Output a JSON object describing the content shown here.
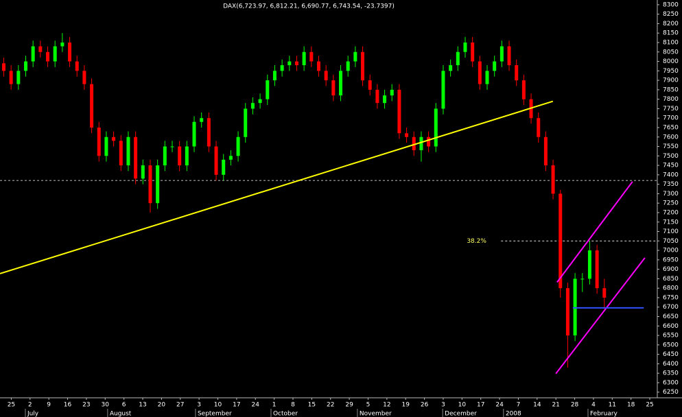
{
  "chart_data": {
    "type": "candlestick",
    "title": "DAX(6,723.97, 6,812.21, 6,690.77, 6,743.54, -23.7397)",
    "up_color": "#00ff00",
    "down_color": "#ff0000",
    "x": [
      1,
      2.95,
      4.9,
      6.85,
      8.8,
      10.75,
      12.7,
      14.65,
      16.6,
      18.55,
      20.5,
      22.45,
      24.4,
      26.35,
      28.3,
      30.25,
      32.2,
      34.15,
      36.1,
      38.05,
      40,
      41.95,
      43.9,
      45.85,
      47.8,
      49.75,
      51.7,
      53.65,
      55.6,
      57.55,
      59.5,
      61.45,
      63.4,
      65.35,
      67.3,
      69.25,
      71.2,
      73.15,
      75.1,
      77.05,
      79,
      80.95,
      82.9,
      84.85,
      86.8,
      88.75,
      90.7,
      92.65,
      94.6,
      96.55,
      98.5,
      100.45,
      102.4,
      104.35,
      106.3,
      108.25,
      110.2,
      112.15,
      114.1,
      116.05,
      118,
      119.95,
      121.9,
      123.85,
      125.8,
      127.75,
      129.7,
      131.65,
      133.6,
      135.55,
      137.5,
      139.45,
      141.4,
      143.35,
      145.3,
      147.25,
      149.2,
      151.15,
      153.1,
      155.05,
      157,
      158.95,
      160.9
    ],
    "open": [
      7990,
      7950,
      7880,
      7950,
      8000,
      8080,
      8050,
      8000,
      8080,
      8100,
      8000,
      7950,
      7880,
      7650,
      7500,
      7600,
      7580,
      7450,
      7600,
      7380,
      7450,
      7250,
      7450,
      7550,
      7550,
      7450,
      7550,
      7680,
      7700,
      7550,
      7400,
      7480,
      7500,
      7600,
      7750,
      7780,
      7800,
      7900,
      7950,
      7980,
      8000,
      7980,
      8050,
      8000,
      7950,
      7900,
      7820,
      7950,
      8000,
      8050,
      7900,
      7850,
      7780,
      7820,
      7850,
      7620,
      7600,
      7530,
      7600,
      7550,
      7750,
      7950,
      7980,
      8050,
      8100,
      8000,
      7880,
      7950,
      8000,
      8080,
      7980,
      7900,
      7800,
      7700,
      7600,
      7450,
      7300,
      6800,
      6550,
      6850,
      6850,
      7000,
      6800
    ],
    "high": [
      8020,
      7980,
      7980,
      8030,
      8110,
      8110,
      8080,
      8110,
      8150,
      8130,
      8030,
      7980,
      7910,
      7680,
      7630,
      7630,
      7610,
      7630,
      7630,
      7480,
      7480,
      7480,
      7580,
      7580,
      7580,
      7580,
      7710,
      7730,
      7730,
      7580,
      7510,
      7530,
      7630,
      7780,
      7810,
      7830,
      7930,
      7980,
      8010,
      8030,
      8030,
      8080,
      8080,
      8030,
      7980,
      7930,
      7980,
      8030,
      8080,
      8080,
      7930,
      7880,
      7850,
      7880,
      7880,
      7650,
      7630,
      7630,
      7630,
      7780,
      7980,
      8010,
      8080,
      8130,
      8130,
      8030,
      7980,
      8030,
      8110,
      8110,
      8010,
      7930,
      7830,
      7730,
      7630,
      7480,
      7320,
      6830,
      6880,
      6880,
      7050,
      7030,
      6850
    ],
    "low": [
      7920,
      7850,
      7850,
      7920,
      7970,
      8020,
      7970,
      7970,
      8050,
      7970,
      7920,
      7850,
      7620,
      7470,
      7470,
      7550,
      7420,
      7420,
      7350,
      7350,
      7200,
      7220,
      7420,
      7520,
      7420,
      7420,
      7520,
      7650,
      7520,
      7370,
      7370,
      7450,
      7470,
      7570,
      7720,
      7750,
      7770,
      7870,
      7920,
      7950,
      7950,
      7950,
      7970,
      7920,
      7870,
      7790,
      7790,
      7920,
      7970,
      7870,
      7820,
      7750,
      7750,
      7790,
      7590,
      7570,
      7500,
      7470,
      7520,
      7520,
      7720,
      7920,
      7950,
      8020,
      7970,
      7850,
      7850,
      7920,
      7970,
      7950,
      7870,
      7770,
      7670,
      7570,
      7420,
      7270,
      6750,
      6380,
      6520,
      6780,
      6820,
      6770,
      6690
    ],
    "close": [
      7950,
      7880,
      7950,
      8000,
      8080,
      8050,
      8000,
      8080,
      8100,
      8000,
      7950,
      7880,
      7650,
      7500,
      7600,
      7580,
      7450,
      7600,
      7380,
      7450,
      7250,
      7450,
      7550,
      7550,
      7450,
      7550,
      7680,
      7700,
      7550,
      7400,
      7480,
      7500,
      7600,
      7750,
      7780,
      7800,
      7900,
      7950,
      7980,
      8000,
      7980,
      8050,
      8000,
      7950,
      7900,
      7820,
      7950,
      8000,
      8050,
      7900,
      7850,
      7780,
      7820,
      7850,
      7620,
      7600,
      7530,
      7600,
      7550,
      7750,
      7950,
      7980,
      8050,
      8100,
      8000,
      7880,
      7950,
      8000,
      8080,
      7980,
      7900,
      7800,
      7700,
      7600,
      7450,
      7300,
      6800,
      6550,
      6850,
      6850,
      7000,
      6800,
      6750
    ],
    "xlim": [
      0,
      175
    ],
    "ylim": [
      6220,
      8325
    ],
    "yticks": [
      6250,
      6300,
      6350,
      6400,
      6450,
      6500,
      6550,
      6600,
      6650,
      6700,
      6750,
      6800,
      6850,
      6900,
      6950,
      7000,
      7050,
      7100,
      7150,
      7200,
      7250,
      7300,
      7350,
      7400,
      7450,
      7500,
      7550,
      7600,
      7650,
      7700,
      7750,
      7800,
      7850,
      7900,
      7950,
      8000,
      8050,
      8100,
      8150,
      8200,
      8250,
      8300
    ],
    "xticks": [
      {
        "value": 3,
        "label": "25"
      },
      {
        "value": 8,
        "label": "2"
      },
      {
        "value": 13,
        "label": "9"
      },
      {
        "value": 18,
        "label": "16"
      },
      {
        "value": 23,
        "label": "23"
      },
      {
        "value": 28,
        "label": "30"
      },
      {
        "value": 33,
        "label": "6"
      },
      {
        "value": 38,
        "label": "13"
      },
      {
        "value": 43,
        "label": "20"
      },
      {
        "value": 48,
        "label": "27"
      },
      {
        "value": 53,
        "label": "3"
      },
      {
        "value": 58,
        "label": "10"
      },
      {
        "value": 63,
        "label": "17"
      },
      {
        "value": 68,
        "label": "24"
      },
      {
        "value": 73,
        "label": "1"
      },
      {
        "value": 78,
        "label": "8"
      },
      {
        "value": 83,
        "label": "15"
      },
      {
        "value": 88,
        "label": "22"
      },
      {
        "value": 93,
        "label": "29"
      },
      {
        "value": 98,
        "label": "5"
      },
      {
        "value": 103,
        "label": "12"
      },
      {
        "value": 108,
        "label": "19"
      },
      {
        "value": 113,
        "label": "26"
      },
      {
        "value": 118,
        "label": "3"
      },
      {
        "value": 123,
        "label": "10"
      },
      {
        "value": 128,
        "label": "17"
      },
      {
        "value": 133,
        "label": "24"
      },
      {
        "value": 138,
        "label": "7"
      },
      {
        "value": 143,
        "label": "14"
      },
      {
        "value": 148,
        "label": "21"
      },
      {
        "value": 153,
        "label": "28"
      },
      {
        "value": 158,
        "label": "4"
      },
      {
        "value": 163,
        "label": "11"
      },
      {
        "value": 168,
        "label": "18"
      },
      {
        "value": 173,
        "label": "25"
      }
    ],
    "month_labels": [
      {
        "value": 7.3,
        "label": "July"
      },
      {
        "value": 29.2,
        "label": "August"
      },
      {
        "value": 52.6,
        "label": "September"
      },
      {
        "value": 72.7,
        "label": "October"
      },
      {
        "value": 95.7,
        "label": "November"
      },
      {
        "value": 118.4,
        "label": "December"
      },
      {
        "value": 134.6,
        "label": "2008"
      },
      {
        "value": 157.1,
        "label": "February"
      }
    ],
    "trendlines": [
      {
        "color": "#ffff00",
        "x": [
          0,
          147.2
        ],
        "y": [
          6877,
          7789
        ]
      },
      {
        "color": "#ff00ff",
        "x": [
          148,
          171.7
        ],
        "y": [
          6348,
          6961
        ]
      },
      {
        "color": "#ff00ff",
        "x": [
          148.3,
          168.4
        ],
        "y": [
          6831,
          7364
        ]
      },
      {
        "color": "#3050ff",
        "x": [
          152.5,
          171.4
        ],
        "y": [
          6696,
          6696
        ]
      }
    ],
    "hlines": [
      {
        "value": 7370,
        "from": 0,
        "color": "#ffffff"
      },
      {
        "value": 7050,
        "from": 133.4,
        "color": "#ffffff",
        "label": "38.2%",
        "label_x": 129.5,
        "label_color": "#ffff66"
      }
    ]
  }
}
